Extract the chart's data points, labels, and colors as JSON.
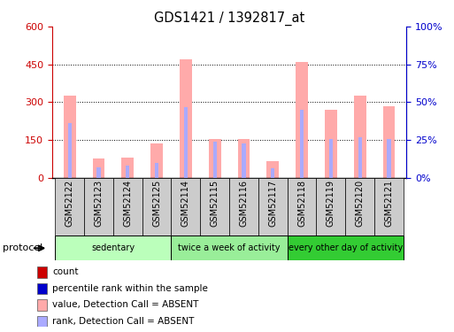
{
  "title": "GDS1421 / 1392817_at",
  "samples": [
    "GSM52122",
    "GSM52123",
    "GSM52124",
    "GSM52125",
    "GSM52114",
    "GSM52115",
    "GSM52116",
    "GSM52117",
    "GSM52118",
    "GSM52119",
    "GSM52120",
    "GSM52121"
  ],
  "value_absent": [
    325,
    75,
    80,
    135,
    470,
    153,
    153,
    65,
    460,
    270,
    325,
    285
  ],
  "rank_absent": [
    215,
    42,
    47,
    60,
    280,
    143,
    137,
    38,
    270,
    155,
    160,
    155
  ],
  "groups": [
    {
      "label": "sedentary",
      "indices": [
        0,
        1,
        2,
        3
      ],
      "color": "#bbffbb"
    },
    {
      "label": "twice a week of activity",
      "indices": [
        4,
        5,
        6,
        7
      ],
      "color": "#99ee99"
    },
    {
      "label": "every other day of activity",
      "indices": [
        8,
        9,
        10,
        11
      ],
      "color": "#33cc33"
    }
  ],
  "bar_color_absent_value": "#ffaaaa",
  "bar_color_absent_rank": "#aaaaff",
  "left_ylim": [
    0,
    600
  ],
  "right_ylim": [
    0,
    100
  ],
  "left_yticks": [
    0,
    150,
    300,
    450,
    600
  ],
  "right_yticks": [
    0,
    25,
    50,
    75,
    100
  ],
  "right_yticklabels": [
    "0%",
    "25%",
    "50%",
    "75%",
    "100%"
  ],
  "left_tick_color": "#cc0000",
  "right_tick_color": "#0000cc",
  "background_color": "#ffffff",
  "xlabel_area_bg": "#cccccc",
  "protocol_label": "protocol",
  "legend_items": [
    {
      "color": "#cc0000",
      "label": "count"
    },
    {
      "color": "#0000cc",
      "label": "percentile rank within the sample"
    },
    {
      "color": "#ffaaaa",
      "label": "value, Detection Call = ABSENT"
    },
    {
      "color": "#aaaaff",
      "label": "rank, Detection Call = ABSENT"
    }
  ]
}
